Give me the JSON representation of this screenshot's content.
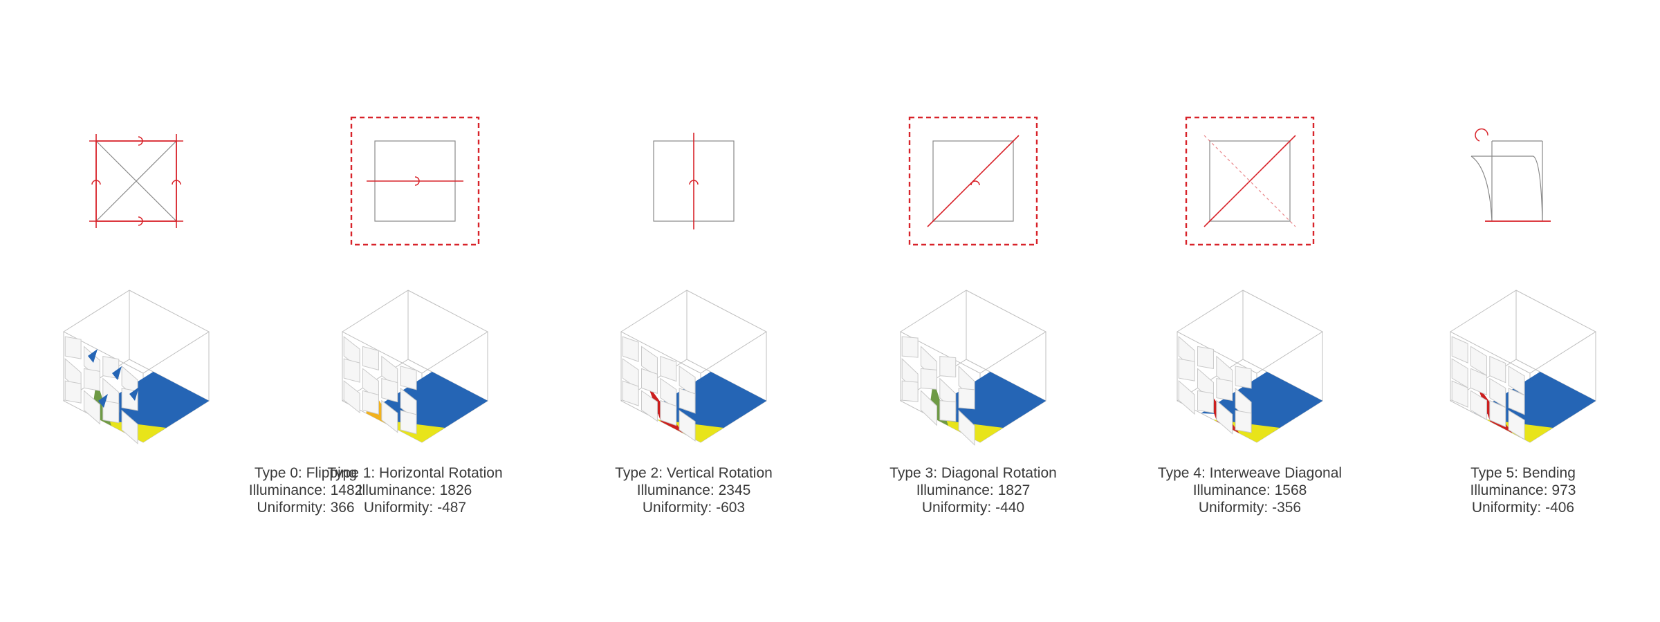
{
  "colors": {
    "red": "#d8232a",
    "blue": "#2565b5",
    "yellow": "#e8e41a",
    "green": "#6e9a45",
    "deep_red": "#cc1f1f",
    "orange": "#f2b21c",
    "frame": "#bfbfbf",
    "square": "#888888",
    "text": "#3a3a3a"
  },
  "types": [
    {
      "name": "Type 0: Flipping",
      "illuminance_label": "Illuminance:",
      "illuminance": 1482,
      "uniformity_label": "Uniformity:",
      "uniformity": 366,
      "highlighted": false,
      "rotation_icon": "flip-all-edges-icon"
    },
    {
      "name": "Type 1: Horizontal Rotation",
      "illuminance_label": "Illuminance:",
      "illuminance": 1826,
      "uniformity_label": "Uniformity:",
      "uniformity": -487,
      "highlighted": true,
      "rotation_icon": "horizontal-axis-icon"
    },
    {
      "name": "Type 2: Vertical Rotation",
      "illuminance_label": "Illuminance:",
      "illuminance": 2345,
      "uniformity_label": "Uniformity:",
      "uniformity": -603,
      "highlighted": false,
      "rotation_icon": "vertical-axis-icon"
    },
    {
      "name": "Type 3: Diagonal Rotation",
      "illuminance_label": "Illuminance:",
      "illuminance": 1827,
      "uniformity_label": "Uniformity:",
      "uniformity": -440,
      "highlighted": true,
      "rotation_icon": "diagonal-axis-icon"
    },
    {
      "name": "Type 4: Interweave Diagonal",
      "illuminance_label": "Illuminance:",
      "illuminance": 1568,
      "uniformity_label": "Uniformity:",
      "uniformity": -356,
      "highlighted": true,
      "rotation_icon": "interweave-diagonal-icon"
    },
    {
      "name": "Type 5: Bending",
      "illuminance_label": "Illuminance:",
      "illuminance": 973,
      "uniformity_label": "Uniformity:",
      "uniformity": -406,
      "highlighted": false,
      "rotation_icon": "bending-icon"
    }
  ]
}
